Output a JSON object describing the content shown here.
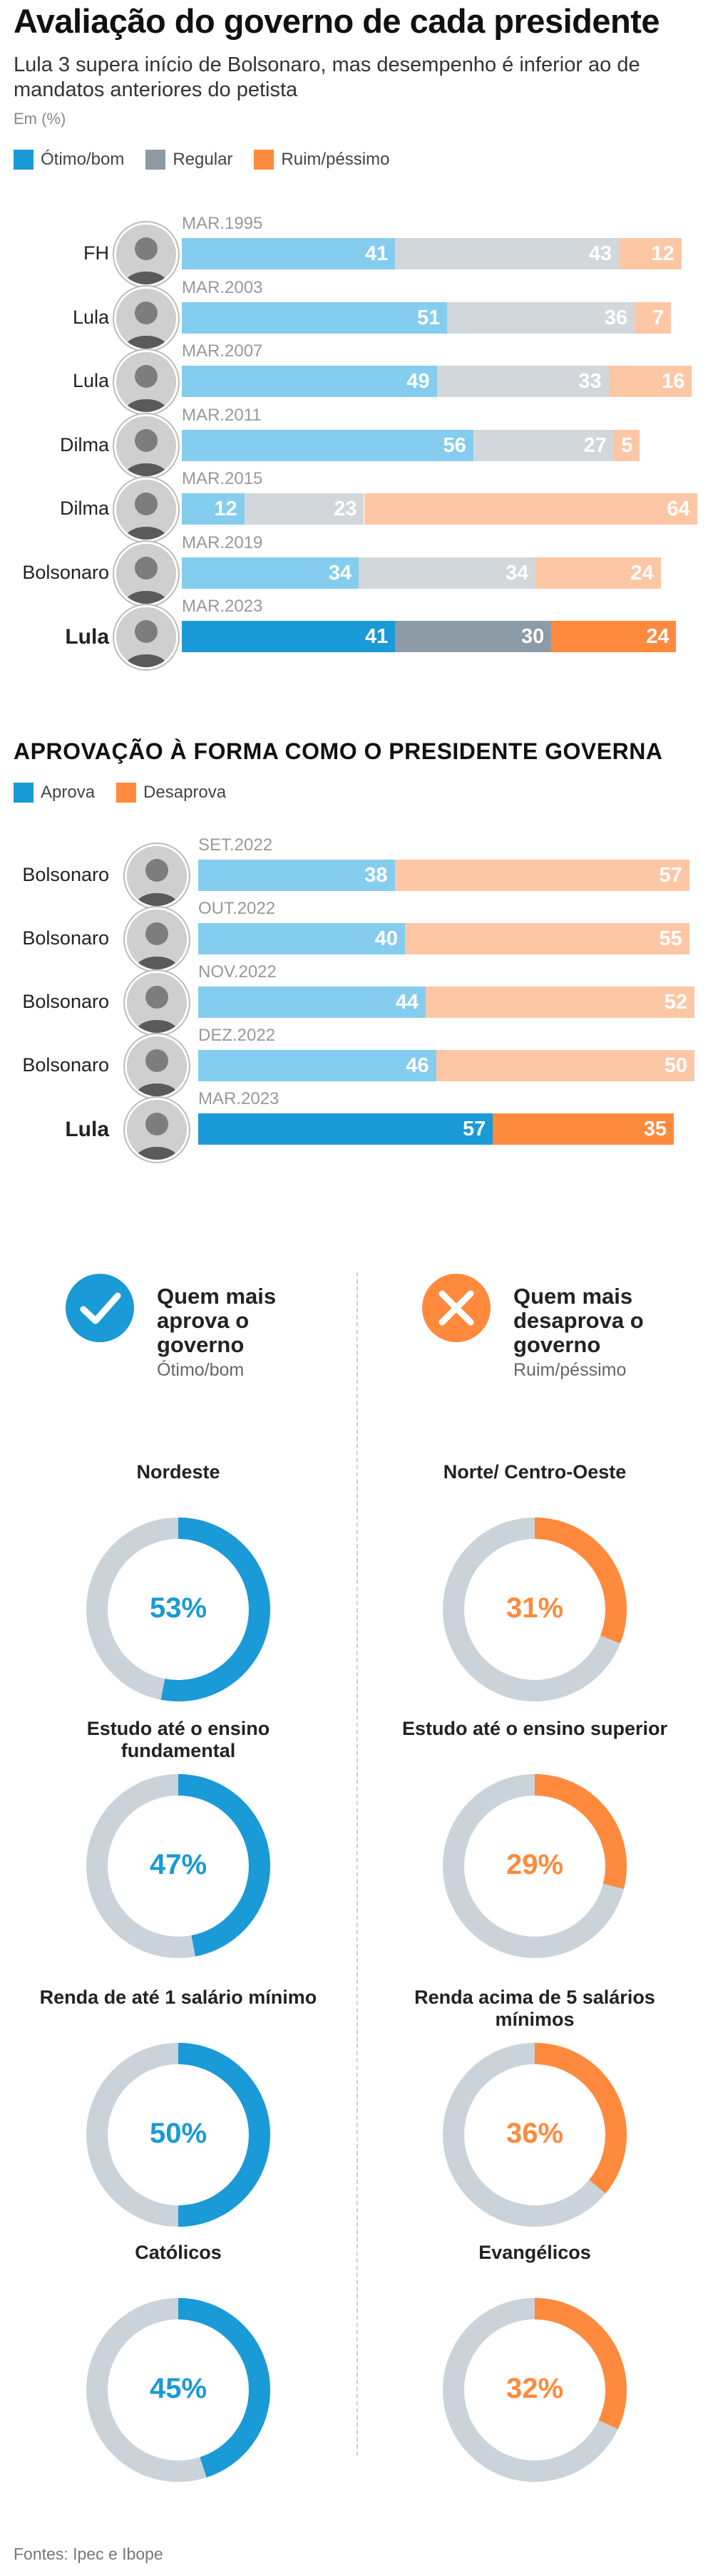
{
  "header": {
    "title": "Avaliação do governo de cada presidente",
    "subtitle": "Lula 3 supera início de Bolsonaro, mas desempenho é inferior ao de mandatos anteriores do petista",
    "unit": "Em (%)"
  },
  "colors": {
    "good": "#1a9ad6",
    "good_light": "#85cdee",
    "regular": "#8d9ba6",
    "regular_light": "#d2d7db",
    "bad": "#ff8a3d",
    "bad_light": "#fdc7a5",
    "ring_track": "#cbd3da"
  },
  "legend1": [
    "Ótimo/bom",
    "Regular",
    "Ruim/péssimo"
  ],
  "legend2": [
    "Aprova",
    "Desaprova"
  ],
  "section2": {
    "title": "APROVAÇÃO À FORMA COMO O PRESIDENTE GOVERNA"
  },
  "chart_data": [
    {
      "type": "bar",
      "stacked": true,
      "orientation": "horizontal",
      "title": "Avaliação do governo de cada presidente",
      "series_names": [
        "Ótimo/bom",
        "Regular",
        "Ruim/péssimo"
      ],
      "rows": [
        {
          "name": "FH",
          "date": "MAR.1995",
          "values": [
            41,
            43,
            12
          ],
          "highlight": false
        },
        {
          "name": "Lula",
          "date": "MAR.2003",
          "values": [
            51,
            36,
            7
          ],
          "highlight": false
        },
        {
          "name": "Lula",
          "date": "MAR.2007",
          "values": [
            49,
            33,
            16
          ],
          "highlight": false
        },
        {
          "name": "Dilma",
          "date": "MAR.2011",
          "values": [
            56,
            27,
            5
          ],
          "highlight": false
        },
        {
          "name": "Dilma",
          "date": "MAR.2015",
          "values": [
            12,
            23,
            64
          ],
          "highlight": false
        },
        {
          "name": "Bolsonaro",
          "date": "MAR.2019",
          "values": [
            34,
            34,
            24
          ],
          "highlight": false
        },
        {
          "name": "Lula",
          "date": "MAR.2023",
          "values": [
            41,
            30,
            24
          ],
          "highlight": true
        }
      ]
    },
    {
      "type": "bar",
      "stacked": true,
      "orientation": "horizontal",
      "title": "APROVAÇÃO À FORMA COMO O PRESIDENTE GOVERNA",
      "series_names": [
        "Aprova",
        "Desaprova"
      ],
      "rows": [
        {
          "name": "Bolsonaro",
          "date": "SET.2022",
          "values": [
            38,
            57
          ],
          "highlight": false
        },
        {
          "name": "Bolsonaro",
          "date": "OUT.2022",
          "values": [
            40,
            55
          ],
          "highlight": false
        },
        {
          "name": "Bolsonaro",
          "date": "NOV.2022",
          "values": [
            44,
            52
          ],
          "highlight": false
        },
        {
          "name": "Bolsonaro",
          "date": "DEZ.2022",
          "values": [
            46,
            50
          ],
          "highlight": false
        },
        {
          "name": "Lula",
          "date": "MAR.2023",
          "values": [
            57,
            35
          ],
          "highlight": true
        }
      ]
    },
    {
      "type": "pie",
      "variant": "donut",
      "title": "Quem mais aprova o governo",
      "subtitle": "Ótimo/bom",
      "items": [
        {
          "label": "Nordeste",
          "value": 53,
          "display": "53%"
        },
        {
          "label": "Estudo até o ensino fundamental",
          "value": 47,
          "display": "47%"
        },
        {
          "label": "Renda de até 1 salário mínimo",
          "value": 50,
          "display": "50%"
        },
        {
          "label": "Católicos",
          "value": 45,
          "display": "45%"
        }
      ]
    },
    {
      "type": "pie",
      "variant": "donut",
      "title": "Quem mais desaprova o governo",
      "subtitle": "Ruim/péssimo",
      "items": [
        {
          "label": "Norte/ Centro-Oeste",
          "value": 31,
          "display": "31%"
        },
        {
          "label": "Estudo até o ensino superior",
          "value": 29,
          "display": "29%"
        },
        {
          "label": "Renda acima de 5 salários mínimos",
          "value": 36,
          "display": "36%"
        },
        {
          "label": "Evangélicos",
          "value": 32,
          "display": "32%"
        }
      ]
    }
  ],
  "approve_block": {
    "title": "Quem mais aprova o governo",
    "subtitle": "Ótimo/bom",
    "icon": "check-circle-icon"
  },
  "disapprove_block": {
    "title": "Quem mais desaprova o governo",
    "subtitle": "Ruim/péssimo",
    "icon": "x-circle-icon"
  },
  "footer": {
    "source": "Fontes: Ipec e Ibope"
  }
}
